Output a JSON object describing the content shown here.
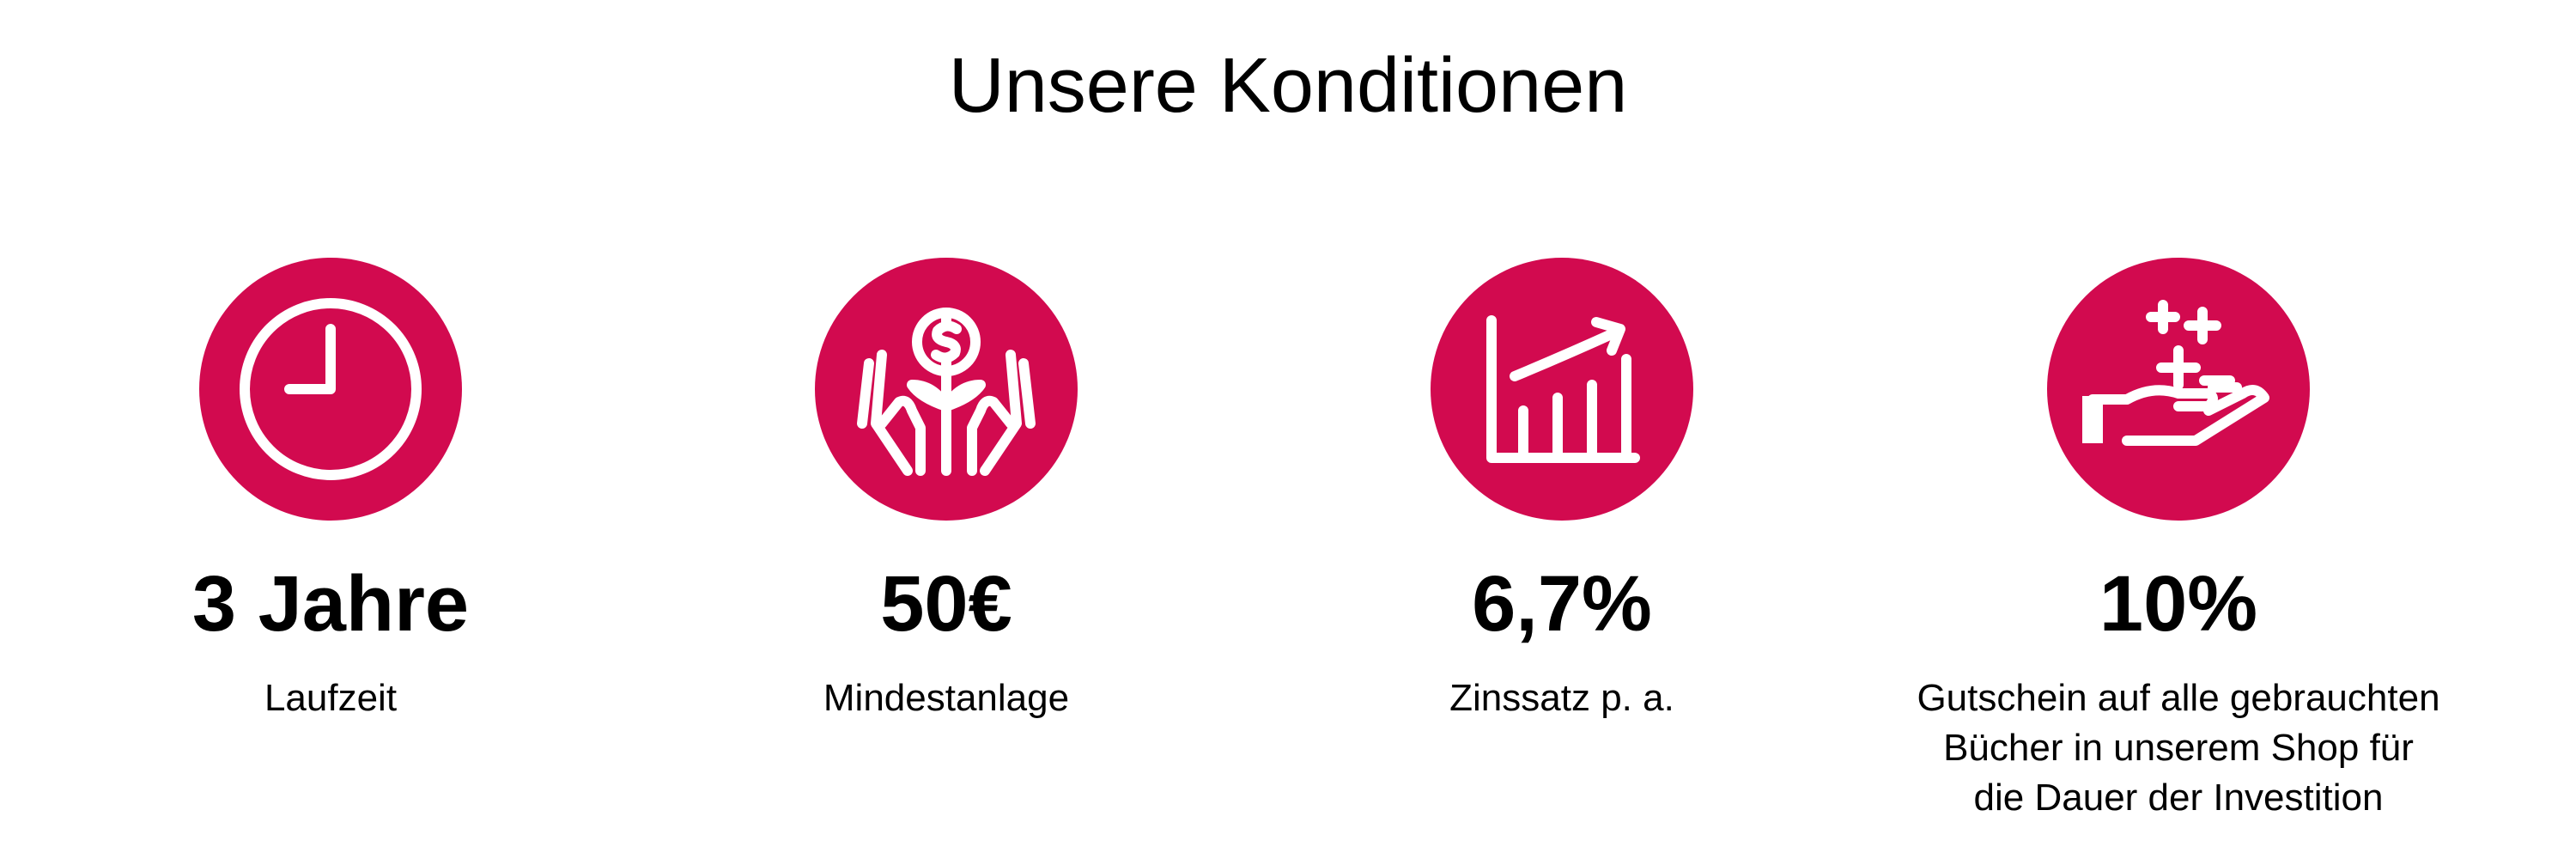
{
  "title": "Unsere Konditionen",
  "items": [
    {
      "value": "3 Jahre",
      "label": [
        "Laufzeit"
      ]
    },
    {
      "value": "50€",
      "label": [
        "Mindestanlage"
      ]
    },
    {
      "value": "6,7%",
      "label": [
        "Zinssatz p. a."
      ]
    },
    {
      "value": "10%",
      "label": [
        "Gutschein auf alle gebrauchten",
        "Bücher in unserem Shop für",
        "die Dauer der Investition"
      ]
    }
  ]
}
